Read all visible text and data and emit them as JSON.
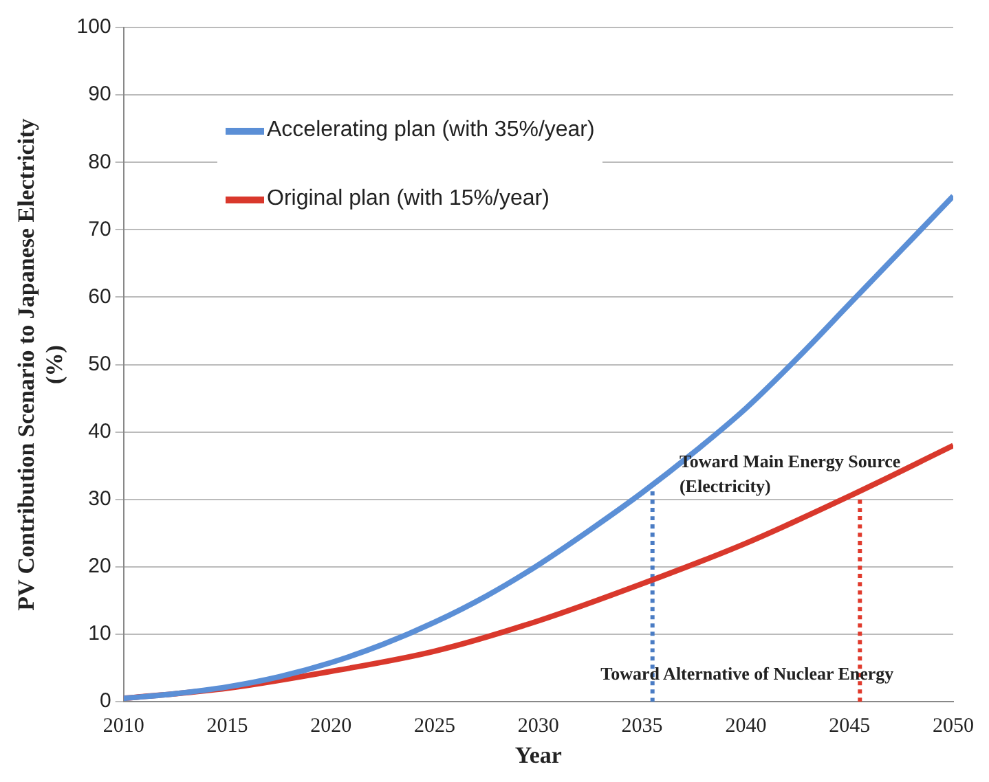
{
  "chart_data": {
    "type": "line",
    "xlabel": "Year",
    "ylabel": "PV Contribution Scenario to Japanese Electricity\n(%)",
    "xlim": [
      2010,
      2050
    ],
    "xticks": [
      2010,
      2015,
      2020,
      2025,
      2030,
      2035,
      2040,
      2045,
      2050
    ],
    "ylim": [
      0,
      100
    ],
    "yticks": [
      0,
      10,
      20,
      30,
      40,
      50,
      60,
      70,
      80,
      90,
      100
    ],
    "grid": "y",
    "legend": "top left",
    "marker": "none",
    "series": [
      {
        "name": "Accelerating plan (with 35%/year)",
        "color": "#5b8fd6",
        "x": [
          2010,
          2012.5,
          2015,
          2017.5,
          2020,
          2022.5,
          2025,
          2027.5,
          2030,
          2032.5,
          2035,
          2037.5,
          2040,
          2042.5,
          2045,
          2047.5,
          2050
        ],
        "values": [
          0.5,
          1.2,
          2.2,
          3.7,
          5.8,
          8.5,
          11.8,
          15.7,
          20.3,
          25.5,
          31,
          37,
          43.5,
          51,
          59,
          67,
          75
        ]
      },
      {
        "name": "Original plan (with 15%/year)",
        "color": "#d9382c",
        "x": [
          2010,
          2015,
          2020,
          2025,
          2030,
          2035,
          2040,
          2045,
          2050
        ],
        "values": [
          0.5,
          2,
          4.5,
          7.5,
          12,
          17.5,
          23.5,
          30.5,
          38
        ]
      },
      {
        "color": "#4a7cc4",
        "line_style": "dotted",
        "x": [
          2035.5,
          2035.5
        ],
        "values": [
          0,
          31.5
        ]
      },
      {
        "color": "#e03a2c",
        "line_style": "dotted",
        "x": [
          2045.5,
          2045.5
        ],
        "values": [
          0,
          30
        ]
      }
    ],
    "annotations": [
      {
        "text": "Toward Main Energy Source\n(Electricity)",
        "x": 2036.8,
        "y": 35.5
      },
      "Toward Alternative of Nuclear Energy"
    ]
  }
}
